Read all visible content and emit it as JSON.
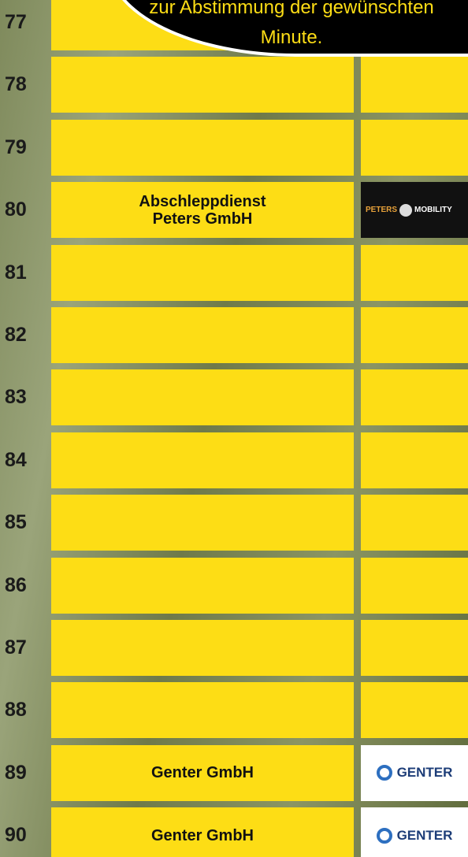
{
  "notice": {
    "lines": [
      "zur Abstimmung der gewünschten",
      "Minute."
    ]
  },
  "rows": [
    {
      "number": "77"
    },
    {
      "number": "78"
    },
    {
      "number": "79"
    },
    {
      "number": "80",
      "sponsor": [
        "Abschleppdienst",
        "Peters GmbH"
      ],
      "logo": {
        "name": "PETERS",
        "suffix": "MOBILITY"
      }
    },
    {
      "number": "81"
    },
    {
      "number": "82"
    },
    {
      "number": "83"
    },
    {
      "number": "84"
    },
    {
      "number": "85"
    },
    {
      "number": "86"
    },
    {
      "number": "87"
    },
    {
      "number": "88"
    },
    {
      "number": "89",
      "sponsor": [
        "Genter GmbH"
      ],
      "logo": {
        "name": "GENTER"
      }
    },
    {
      "number": "90",
      "sponsor": [
        "Genter GmbH"
      ],
      "logo": {
        "name": "GENTER"
      }
    }
  ]
}
